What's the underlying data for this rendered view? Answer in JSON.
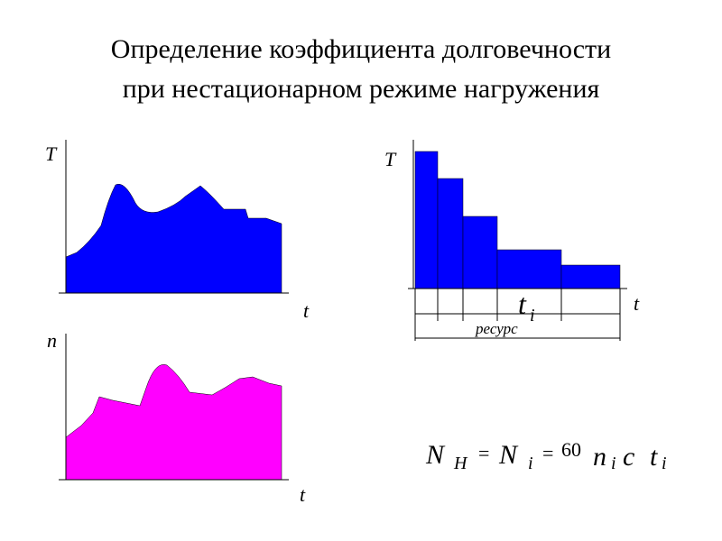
{
  "title": [
    "Определение коэффициента долговечности",
    "при нестационарном режиме нагружения"
  ],
  "diagrams": {
    "torque": {
      "y_label": "T",
      "x_label": "t"
    },
    "cycles": {
      "y_label": "n",
      "x_label": "t"
    },
    "blocks": {
      "y_label": "T",
      "x_label": "t",
      "interval_label": "t",
      "interval_sub": "i",
      "span_label": "ресурс"
    }
  },
  "formula": [
    "N",
    "H",
    "=",
    "N",
    "i",
    "=",
    "60",
    "n",
    "i",
    "c",
    "t",
    "i"
  ]
}
